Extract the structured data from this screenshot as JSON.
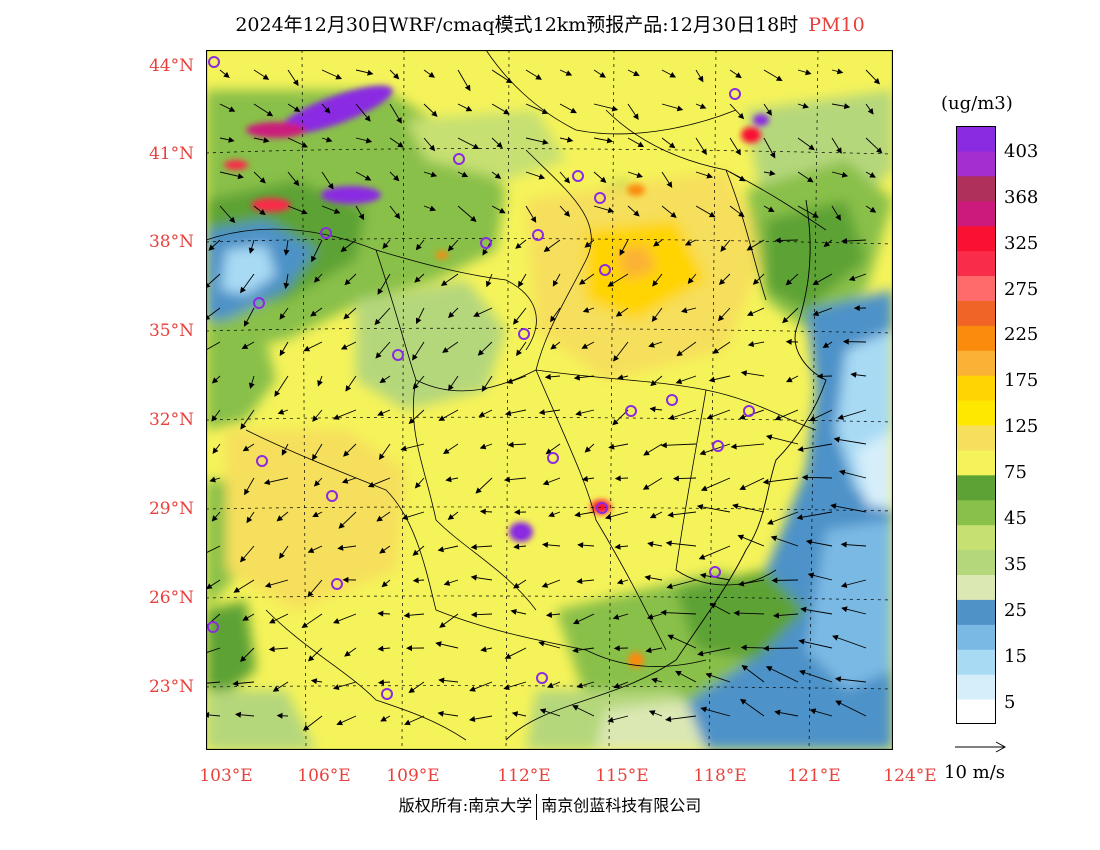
{
  "title": {
    "main": "2024年12月30日WRF/cmaq模式12km预报产品:12月30日18时",
    "pollutant": "PM10"
  },
  "lat_labels": [
    "44°N",
    "41°N",
    "38°N",
    "35°N",
    "32°N",
    "29°N",
    "26°N",
    "23°N"
  ],
  "lon_labels": [
    "103°E",
    "106°E",
    "109°E",
    "112°E",
    "115°E",
    "118°E",
    "121°E",
    "124°E"
  ],
  "colorbar": {
    "unit": "(ug/m3)",
    "bins": [
      {
        "color": "#ffffff"
      },
      {
        "color": "#d6eefa"
      },
      {
        "color": "#a8daf4"
      },
      {
        "color": "#7ab9e4"
      },
      {
        "color": "#4e92c8"
      },
      {
        "color": "#dbe8b4"
      },
      {
        "color": "#b5d77c"
      },
      {
        "color": "#c6e072"
      },
      {
        "color": "#89c04a"
      },
      {
        "color": "#5da234"
      },
      {
        "color": "#f5f35a"
      },
      {
        "color": "#f6df5c"
      },
      {
        "color": "#ffe800"
      },
      {
        "color": "#ffd400"
      },
      {
        "color": "#fbb135"
      },
      {
        "color": "#fa8b0d"
      },
      {
        "color": "#f06428"
      },
      {
        "color": "#ff6a6a"
      },
      {
        "color": "#f92c4a"
      },
      {
        "color": "#fa1030"
      },
      {
        "color": "#cc1a7c"
      },
      {
        "color": "#b0305c"
      },
      {
        "color": "#a42ecf"
      },
      {
        "color": "#8a2be2"
      }
    ],
    "labels": [
      "5",
      "15",
      "25",
      "35",
      "45",
      "75",
      "125",
      "175",
      "225",
      "275",
      "325",
      "368",
      "403"
    ]
  },
  "wind_legend": {
    "label": "10 m/s"
  },
  "copyright": {
    "left": "版权所有:南京大学",
    "right": "南京创蓝科技有限公司"
  },
  "colors": {
    "label_red": "#e8413c",
    "city_marker": "#8a2be2"
  }
}
